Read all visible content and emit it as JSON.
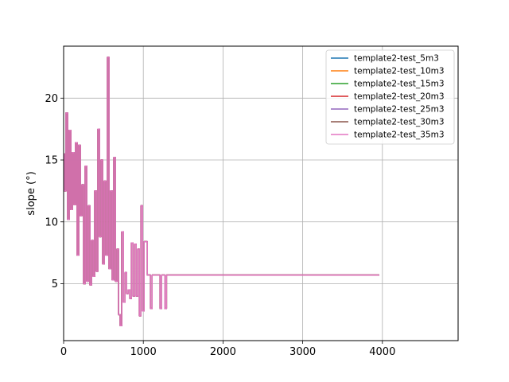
{
  "chart_data": {
    "type": "line",
    "title": "",
    "xlabel": "",
    "ylabel": "slope (°)",
    "xlim": [
      0,
      4950
    ],
    "ylim": [
      0.4,
      24.2
    ],
    "xticks": [
      0,
      1000,
      2000,
      3000,
      4000
    ],
    "yticks": [
      5,
      10,
      15,
      20
    ],
    "grid": true,
    "legend_position": "top-right",
    "x": [
      0,
      20,
      40,
      60,
      80,
      100,
      120,
      140,
      160,
      180,
      200,
      220,
      240,
      260,
      280,
      300,
      320,
      340,
      360,
      380,
      400,
      420,
      440,
      460,
      480,
      500,
      520,
      540,
      560,
      580,
      600,
      620,
      640,
      660,
      680,
      700,
      720,
      740,
      760,
      780,
      800,
      820,
      840,
      860,
      880,
      900,
      920,
      940,
      960,
      980,
      1000,
      1020,
      1040,
      1060,
      1080,
      1100,
      1120,
      1140,
      1160,
      1180,
      1200,
      1220,
      1240,
      1260,
      1280,
      1300,
      1320,
      1340,
      1400,
      1600,
      1800,
      2000,
      2400,
      2800,
      3200,
      3400,
      3600,
      3800,
      3960
    ],
    "series": [
      {
        "name": "template2-test_5m3",
        "color": "#1f77b4",
        "y": [
          15.5,
          12.5,
          18.8,
          10.2,
          17.4,
          11.0,
          15.6,
          11.4,
          16.4,
          7.3,
          16.2,
          10.5,
          13.0,
          5.0,
          14.5,
          5.2,
          11.3,
          4.9,
          8.5,
          5.6,
          12.5,
          6.0,
          17.5,
          8.8,
          15.0,
          6.6,
          13.3,
          7.3,
          23.3,
          6.2,
          12.5,
          5.3,
          15.2,
          5.2,
          7.8,
          2.5,
          1.6,
          9.2,
          3.5,
          5.9,
          4.2,
          4.5,
          3.8,
          8.3,
          4.0,
          8.2,
          4.0,
          7.8,
          2.4,
          11.3,
          2.8,
          8.4,
          8.4,
          5.7,
          5.7,
          3.0,
          5.7,
          5.7,
          5.7,
          5.7,
          5.7,
          3.0,
          5.7,
          5.7,
          3.0,
          5.7,
          5.7,
          5.7,
          5.7,
          5.7,
          5.7,
          5.7,
          5.7,
          5.7,
          5.7,
          5.7,
          5.7,
          5.7,
          5.7
        ]
      },
      {
        "name": "template2-test_10m3",
        "color": "#ff7f0e",
        "y": [
          15.5,
          12.5,
          18.8,
          10.2,
          17.4,
          11.0,
          15.6,
          11.4,
          16.4,
          7.3,
          16.2,
          10.5,
          13.0,
          5.0,
          14.5,
          5.2,
          11.3,
          4.9,
          8.5,
          5.6,
          12.5,
          6.0,
          17.5,
          8.8,
          15.0,
          6.6,
          13.3,
          7.3,
          23.3,
          6.2,
          12.5,
          5.3,
          15.2,
          5.2,
          7.8,
          2.5,
          1.6,
          9.2,
          3.5,
          5.9,
          4.2,
          4.5,
          3.8,
          8.3,
          4.0,
          8.2,
          4.0,
          7.8,
          2.4,
          11.3,
          2.8,
          8.4,
          8.4,
          5.7,
          5.7,
          3.0,
          5.7,
          5.7,
          5.7,
          5.7,
          5.7,
          3.0,
          5.7,
          5.7,
          3.0,
          5.7,
          5.7,
          5.7,
          5.7,
          5.7,
          5.7,
          5.7,
          5.7,
          5.7,
          5.7,
          5.7,
          5.7,
          5.7,
          5.7
        ]
      },
      {
        "name": "template2-test_15m3",
        "color": "#2ca02c",
        "y": [
          15.5,
          12.5,
          18.8,
          10.2,
          17.4,
          11.0,
          15.6,
          11.4,
          16.4,
          7.3,
          16.2,
          10.5,
          13.0,
          5.0,
          14.5,
          5.2,
          11.3,
          4.9,
          8.5,
          5.6,
          12.5,
          6.0,
          17.5,
          8.8,
          15.0,
          6.6,
          13.3,
          7.3,
          23.3,
          6.2,
          12.5,
          5.3,
          15.2,
          5.2,
          7.8,
          2.5,
          1.6,
          9.2,
          3.5,
          5.9,
          4.2,
          4.5,
          3.8,
          8.3,
          4.0,
          8.2,
          4.0,
          7.8,
          2.4,
          11.3,
          2.8,
          8.4,
          8.4,
          5.7,
          5.7,
          3.0,
          5.7,
          5.7,
          5.7,
          5.7,
          5.7,
          3.0,
          5.7,
          5.7,
          3.0,
          5.7,
          5.7,
          5.7,
          5.7,
          5.7,
          5.7,
          5.7,
          5.7,
          5.7,
          5.7,
          5.7,
          5.7,
          5.7,
          5.7
        ]
      },
      {
        "name": "template2-test_20m3",
        "color": "#d62728",
        "y": [
          15.5,
          12.5,
          18.8,
          10.2,
          17.4,
          11.0,
          15.6,
          11.4,
          16.4,
          7.3,
          16.2,
          10.5,
          13.0,
          5.0,
          14.5,
          5.2,
          11.3,
          4.9,
          8.5,
          5.6,
          12.5,
          6.0,
          17.5,
          8.8,
          15.0,
          6.6,
          13.3,
          7.3,
          23.3,
          6.2,
          12.5,
          5.3,
          15.2,
          5.2,
          7.8,
          2.5,
          1.6,
          9.2,
          3.5,
          5.9,
          4.2,
          4.5,
          3.8,
          8.3,
          4.0,
          8.2,
          4.0,
          7.8,
          2.4,
          11.3,
          2.8,
          8.4,
          8.4,
          5.7,
          5.7,
          3.0,
          5.7,
          5.7,
          5.7,
          5.7,
          5.7,
          3.0,
          5.7,
          5.7,
          3.0,
          5.7,
          5.7,
          5.7,
          5.7,
          5.7,
          5.7,
          5.7,
          5.7,
          5.7,
          5.7,
          5.7,
          5.7,
          5.7,
          5.7
        ]
      },
      {
        "name": "template2-test_25m3",
        "color": "#9467bd",
        "y": [
          15.5,
          12.5,
          18.8,
          10.2,
          17.4,
          11.0,
          15.6,
          11.4,
          16.4,
          7.3,
          16.2,
          10.5,
          13.0,
          5.0,
          14.5,
          5.2,
          11.3,
          4.9,
          8.5,
          5.6,
          12.5,
          6.0,
          17.5,
          8.8,
          15.0,
          6.6,
          13.3,
          7.3,
          23.3,
          6.2,
          12.5,
          5.3,
          15.2,
          5.2,
          7.8,
          2.5,
          1.6,
          9.2,
          3.5,
          5.9,
          4.2,
          4.5,
          3.8,
          8.3,
          4.0,
          8.2,
          4.0,
          7.8,
          2.4,
          11.3,
          2.8,
          8.4,
          8.4,
          5.7,
          5.7,
          3.0,
          5.7,
          5.7,
          5.7,
          5.7,
          5.7,
          3.0,
          5.7,
          5.7,
          3.0,
          5.7,
          5.7,
          5.7,
          5.7,
          5.7,
          5.7,
          5.7,
          5.7,
          5.7,
          5.7,
          5.7,
          5.7,
          5.7,
          5.7
        ]
      },
      {
        "name": "template2-test_30m3",
        "color": "#8c564b",
        "y": [
          15.5,
          12.5,
          18.8,
          10.2,
          17.4,
          11.0,
          15.6,
          11.4,
          16.4,
          7.3,
          16.2,
          10.5,
          13.0,
          5.0,
          14.5,
          5.2,
          11.3,
          4.9,
          8.5,
          5.6,
          12.5,
          6.0,
          17.5,
          8.8,
          15.0,
          6.6,
          13.3,
          7.3,
          23.3,
          6.2,
          12.5,
          5.3,
          15.2,
          5.2,
          7.8,
          2.5,
          1.6,
          9.2,
          3.5,
          5.9,
          4.2,
          4.5,
          3.8,
          8.3,
          4.0,
          8.2,
          4.0,
          7.8,
          2.4,
          11.3,
          2.8,
          8.4,
          8.4,
          5.7,
          5.7,
          3.0,
          5.7,
          5.7,
          5.7,
          5.7,
          5.7,
          3.0,
          5.7,
          5.7,
          3.0,
          5.7,
          5.7,
          5.7,
          5.7,
          5.7,
          5.7,
          5.7,
          5.7,
          5.7,
          5.7,
          5.7,
          5.7,
          5.7,
          5.7
        ]
      },
      {
        "name": "template2-test_35m3",
        "color": "#e377c2",
        "y": [
          15.5,
          12.5,
          18.8,
          10.2,
          17.4,
          11.0,
          15.6,
          11.4,
          16.4,
          7.3,
          16.2,
          10.5,
          13.0,
          5.0,
          14.5,
          5.2,
          11.3,
          4.9,
          8.5,
          5.6,
          12.5,
          6.0,
          17.5,
          8.8,
          15.0,
          6.6,
          13.3,
          7.3,
          23.3,
          6.2,
          12.5,
          5.3,
          15.2,
          5.2,
          7.8,
          2.5,
          1.6,
          9.2,
          3.5,
          5.9,
          4.2,
          4.5,
          3.8,
          8.3,
          4.0,
          8.2,
          4.0,
          7.8,
          2.4,
          11.3,
          2.8,
          8.4,
          8.4,
          5.7,
          5.7,
          3.0,
          5.7,
          5.7,
          5.7,
          5.7,
          5.7,
          3.0,
          5.7,
          5.7,
          3.0,
          5.7,
          5.7,
          5.7,
          5.7,
          5.7,
          5.7,
          5.7,
          5.7,
          5.7,
          5.7,
          5.7,
          5.7,
          5.7,
          5.7
        ]
      }
    ]
  }
}
